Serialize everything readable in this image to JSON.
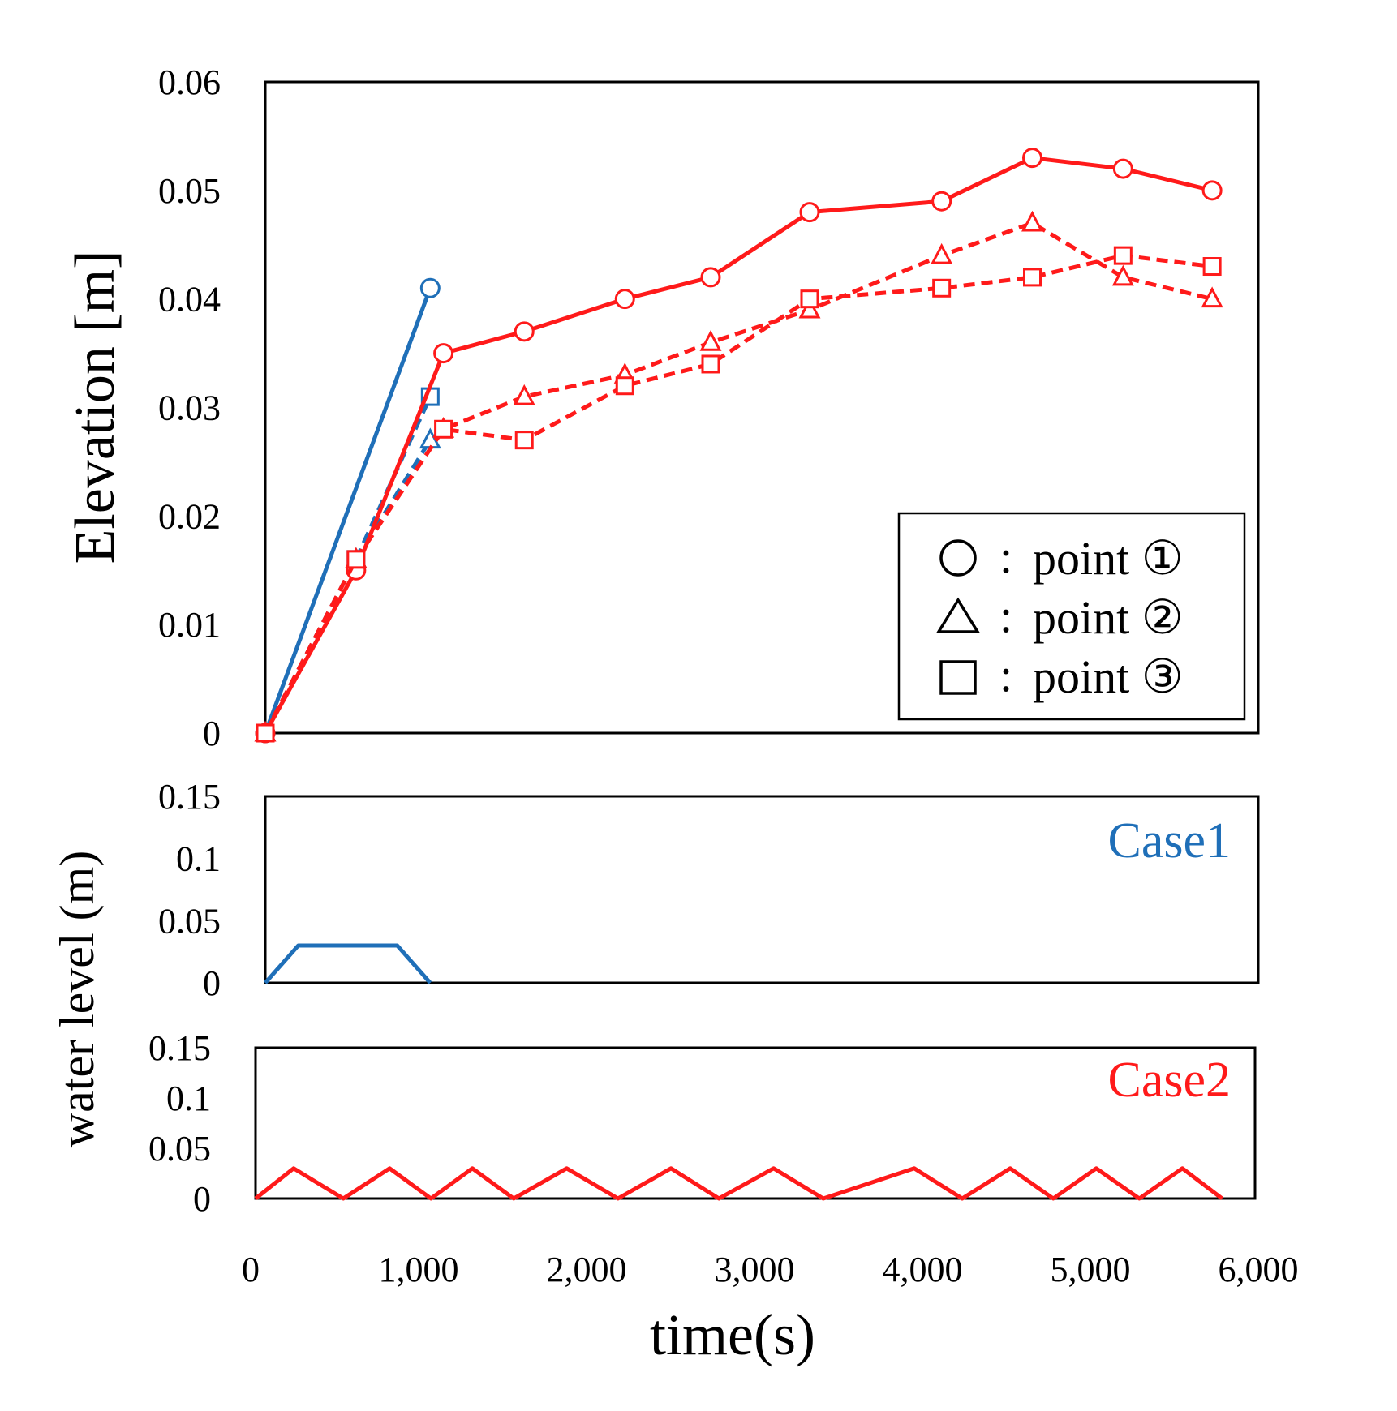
{
  "colors": {
    "case1": "#1f6fb8",
    "case2": "#ff1a1a",
    "axis": "#000000"
  },
  "xaxis": {
    "label": "time(s)",
    "ticks": [
      "0",
      "1,000",
      "2,000",
      "3,000",
      "4,000",
      "5,000",
      "6,000"
    ],
    "range": [
      0,
      6000
    ]
  },
  "chart_data": [
    {
      "type": "line",
      "title": "",
      "xlabel": "",
      "ylabel": "Elevation [m]",
      "ylim": [
        0,
        0.06
      ],
      "yticks": [
        "0",
        "0.01",
        "0.02",
        "0.03",
        "0.04",
        "0.05",
        "0.06"
      ],
      "grid": false,
      "legend": {
        "position": "bottom-right",
        "entries": [
          {
            "marker": "circle",
            "label": "point ①"
          },
          {
            "marker": "triangle",
            "label": "point ②"
          },
          {
            "marker": "square",
            "label": "point ③"
          }
        ]
      },
      "series": [
        {
          "case": "Case1",
          "marker": "circle",
          "dash": false,
          "x": [
            0,
            1000
          ],
          "y": [
            0,
            0.041
          ]
        },
        {
          "case": "Case1",
          "marker": "triangle",
          "dash": true,
          "x": [
            0,
            550,
            1000
          ],
          "y": [
            0,
            0.016,
            0.027
          ]
        },
        {
          "case": "Case1",
          "marker": "square",
          "dash": true,
          "x": [
            0,
            550,
            1000
          ],
          "y": [
            0,
            0.016,
            0.031
          ]
        },
        {
          "case": "Case2",
          "marker": "circle",
          "dash": false,
          "x": [
            0,
            550,
            1080,
            1570,
            2180,
            2700,
            3300,
            4100,
            4650,
            5200,
            5740
          ],
          "y": [
            0,
            0.015,
            0.035,
            0.037,
            0.04,
            0.042,
            0.048,
            0.049,
            0.053,
            0.052,
            0.05
          ]
        },
        {
          "case": "Case2",
          "marker": "triangle",
          "dash": true,
          "x": [
            0,
            550,
            1080,
            1570,
            2180,
            2700,
            3300,
            4100,
            4650,
            5200,
            5740
          ],
          "y": [
            0,
            0.016,
            0.028,
            0.031,
            0.033,
            0.036,
            0.039,
            0.044,
            0.047,
            0.042,
            0.04
          ]
        },
        {
          "case": "Case2",
          "marker": "square",
          "dash": true,
          "x": [
            0,
            550,
            1080,
            1570,
            2180,
            2700,
            3300,
            4100,
            4650,
            5200,
            5740
          ],
          "y": [
            0,
            0.016,
            0.028,
            0.027,
            0.032,
            0.034,
            0.04,
            0.041,
            0.042,
            0.044,
            0.043
          ]
        }
      ]
    },
    {
      "type": "line",
      "title": "Case1",
      "ylim": [
        0,
        0.15
      ],
      "yticks": [
        "0",
        "0.05",
        "0.1",
        "0.15"
      ],
      "series": [
        {
          "x": [
            0,
            200,
            800,
            1000
          ],
          "y": [
            0,
            0.03,
            0.03,
            0
          ]
        }
      ]
    },
    {
      "type": "line",
      "title": "Case2",
      "ylim": [
        0,
        0.15
      ],
      "yticks": [
        "0",
        "0.05",
        "0.1",
        "0.15"
      ],
      "series": [
        {
          "x": [
            0,
            230,
            530,
            810,
            1060,
            1310,
            1560,
            1880,
            2190,
            2510,
            2800,
            3130,
            3430,
            3980,
            4270,
            4560,
            4820,
            5080,
            5340,
            5600,
            5840
          ],
          "y": [
            0,
            0.03,
            0,
            0.03,
            0,
            0.03,
            0,
            0.03,
            0,
            0.03,
            0,
            0.03,
            0,
            0.03,
            0,
            0.03,
            0,
            0.03,
            0,
            0.03,
            0
          ]
        }
      ]
    }
  ],
  "shared_ylabel": "water level (m)"
}
